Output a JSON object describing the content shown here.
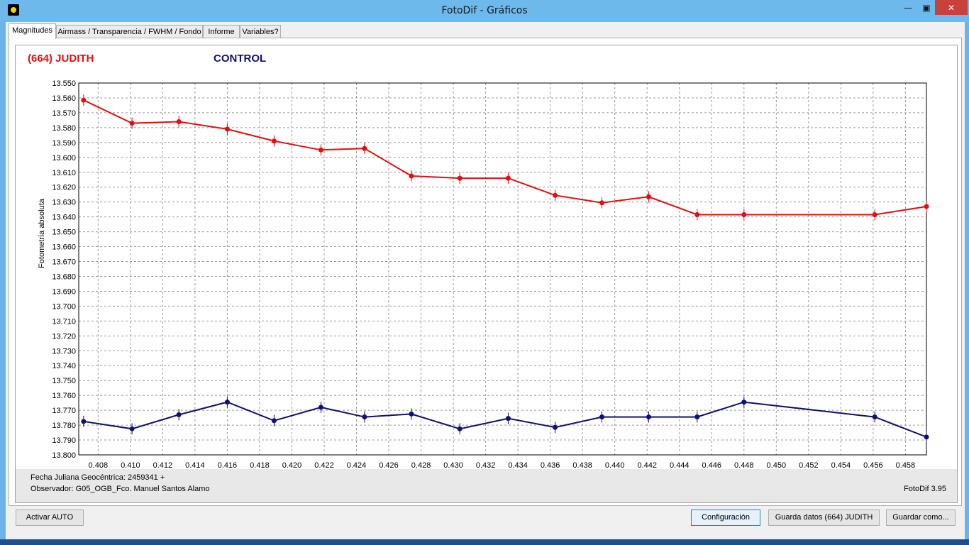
{
  "window": {
    "title": "FotoDif - Gráficos",
    "min_glyph": "—",
    "max_glyph": "▣",
    "close_glyph": "✕",
    "app_icon": "yellow-dot-icon"
  },
  "tabs": [
    {
      "label": "Magnitudes",
      "active": true
    },
    {
      "label": "Airmass / Transparencia / FWHM / Fondo",
      "active": false
    },
    {
      "label": "Informe",
      "active": false
    },
    {
      "label": "Variables?",
      "active": false
    }
  ],
  "legend": {
    "target": "(664) JUDITH",
    "control": "CONTROL"
  },
  "footer": {
    "julian_date": "Fecha Juliana Geocéntrica: 2459341 +",
    "observer": "Observador: G05_OGB_Fco. Manuel Santos Alamo",
    "version": "FotoDif 3.95"
  },
  "buttons": {
    "auto": "Activar AUTO",
    "config": "Configuración",
    "save_data": "Guarda datos (664) JUDITH",
    "save_as": "Guardar como..."
  },
  "chart_data": {
    "type": "line",
    "ylabel": "Fotometría absoluta",
    "xlabel": "",
    "y_inverted": true,
    "ylim": [
      13.55,
      13.8
    ],
    "xlim": [
      0.4068,
      0.4593
    ],
    "grid": true,
    "x_ticks": [
      "0.408",
      "0.410",
      "0.412",
      "0.414",
      "0.416",
      "0.418",
      "0.420",
      "0.422",
      "0.424",
      "0.426",
      "0.428",
      "0.430",
      "0.432",
      "0.434",
      "0.436",
      "0.438",
      "0.440",
      "0.442",
      "0.444",
      "0.446",
      "0.448",
      "0.450",
      "0.452",
      "0.454",
      "0.456",
      "0.458"
    ],
    "y_ticks": [
      "13.550",
      "13.560",
      "13.570",
      "13.580",
      "13.590",
      "13.600",
      "13.610",
      "13.620",
      "13.630",
      "13.640",
      "13.650",
      "13.660",
      "13.670",
      "13.680",
      "13.690",
      "13.700",
      "13.710",
      "13.720",
      "13.730",
      "13.740",
      "13.750",
      "13.760",
      "13.770",
      "13.780",
      "13.790",
      "13.800"
    ],
    "series": [
      {
        "name": "(664) JUDITH",
        "color": "#e01010",
        "x": [
          0.4071,
          0.4101,
          0.413,
          0.416,
          0.4189,
          0.4218,
          0.4245,
          0.4274,
          0.4304,
          0.4334,
          0.4363,
          0.4392,
          0.4421,
          0.4451,
          0.448,
          0.4561,
          0.4593
        ],
        "y": [
          13.5615,
          13.577,
          13.576,
          13.581,
          13.589,
          13.595,
          13.594,
          13.6125,
          13.614,
          13.614,
          13.6255,
          13.6305,
          13.6265,
          13.6385,
          13.6385,
          13.6385,
          13.633
        ]
      },
      {
        "name": "CONTROL",
        "color": "#101070",
        "x": [
          0.4071,
          0.4101,
          0.413,
          0.416,
          0.4189,
          0.4218,
          0.4245,
          0.4274,
          0.4304,
          0.4334,
          0.4363,
          0.4392,
          0.4421,
          0.4451,
          0.448,
          0.4561,
          0.4593
        ],
        "y": [
          13.7775,
          13.7825,
          13.773,
          13.7645,
          13.777,
          13.768,
          13.7745,
          13.7725,
          13.7825,
          13.7755,
          13.7815,
          13.7745,
          13.7745,
          13.7745,
          13.7645,
          13.7745,
          13.788
        ]
      }
    ]
  }
}
